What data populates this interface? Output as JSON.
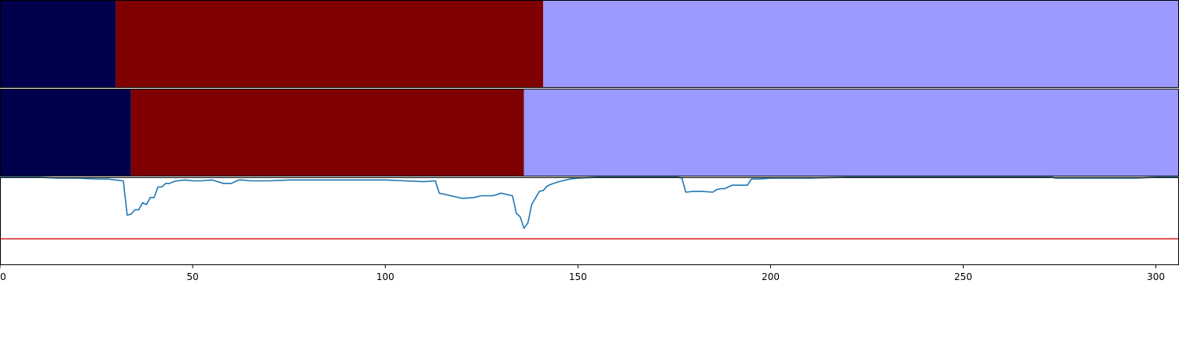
{
  "chart_data": [
    {
      "type": "bar",
      "orientation": "horizontal",
      "stacked": true,
      "segments": [
        {
          "start": 0,
          "end": 30,
          "color": "#00004c"
        },
        {
          "start": 30,
          "end": 141,
          "color": "#7f0000"
        },
        {
          "start": 141,
          "end": 306,
          "color": "#9999ff"
        }
      ],
      "xlim": [
        0,
        306
      ]
    },
    {
      "type": "bar",
      "orientation": "horizontal",
      "stacked": true,
      "segments": [
        {
          "start": 0,
          "end": 34,
          "color": "#00004c"
        },
        {
          "start": 34,
          "end": 136,
          "color": "#7f0000"
        },
        {
          "start": 136,
          "end": 306,
          "color": "#9999ff"
        }
      ],
      "xlim": [
        0,
        306
      ]
    },
    {
      "type": "line",
      "xlim": [
        0,
        306
      ],
      "ylim": [
        0.0,
        1.0
      ],
      "xticks": [
        "0",
        "50",
        "100",
        "150",
        "200",
        "250",
        "300"
      ],
      "xtick_values": [
        0,
        50,
        100,
        150,
        200,
        250,
        300
      ],
      "grid": false,
      "series": [
        {
          "color": "#1f77b4",
          "x": [
            0,
            5,
            10,
            15,
            20,
            25,
            28,
            30,
            32,
            33,
            34,
            35,
            36,
            37,
            38,
            39,
            40,
            41,
            42,
            43,
            44,
            45,
            46,
            48,
            50,
            52,
            55,
            58,
            60,
            62,
            63,
            65,
            67,
            70,
            75,
            80,
            85,
            90,
            95,
            100,
            105,
            110,
            113,
            114,
            117,
            120,
            123,
            125,
            128,
            130,
            133,
            134,
            135,
            136,
            137,
            138,
            140,
            141,
            142,
            143,
            145,
            148,
            150,
            155,
            160,
            165,
            170,
            174,
            176,
            177,
            178,
            180,
            182,
            185,
            186,
            187,
            188,
            190,
            192,
            194,
            195,
            197,
            200,
            210,
            220,
            250,
            273,
            274,
            275,
            280,
            285,
            288,
            290,
            295,
            300,
            306
          ],
          "y": [
            1.0,
            1.0,
            1.0,
            0.99,
            0.99,
            0.98,
            0.98,
            0.97,
            0.96,
            0.57,
            0.58,
            0.63,
            0.63,
            0.71,
            0.69,
            0.77,
            0.77,
            0.89,
            0.89,
            0.93,
            0.93,
            0.95,
            0.96,
            0.97,
            0.96,
            0.96,
            0.97,
            0.93,
            0.93,
            0.97,
            0.97,
            0.96,
            0.96,
            0.96,
            0.97,
            0.97,
            0.97,
            0.97,
            0.97,
            0.97,
            0.96,
            0.95,
            0.96,
            0.82,
            0.79,
            0.76,
            0.77,
            0.79,
            0.79,
            0.82,
            0.79,
            0.59,
            0.55,
            0.42,
            0.48,
            0.69,
            0.84,
            0.85,
            0.9,
            0.92,
            0.95,
            0.98,
            0.99,
            1.0,
            1.0,
            1.0,
            1.0,
            1.0,
            1.0,
            0.99,
            0.83,
            0.84,
            0.84,
            0.83,
            0.86,
            0.87,
            0.87,
            0.91,
            0.91,
            0.91,
            0.98,
            0.98,
            0.99,
            0.99,
            1.0,
            1.0,
            1.0,
            0.99,
            0.99,
            0.99,
            0.99,
            0.99,
            0.99,
            0.99,
            1.0,
            1.0
          ]
        },
        {
          "color": "#d62728",
          "x": [
            0,
            306
          ],
          "y": [
            0.3,
            0.3
          ]
        }
      ]
    }
  ]
}
